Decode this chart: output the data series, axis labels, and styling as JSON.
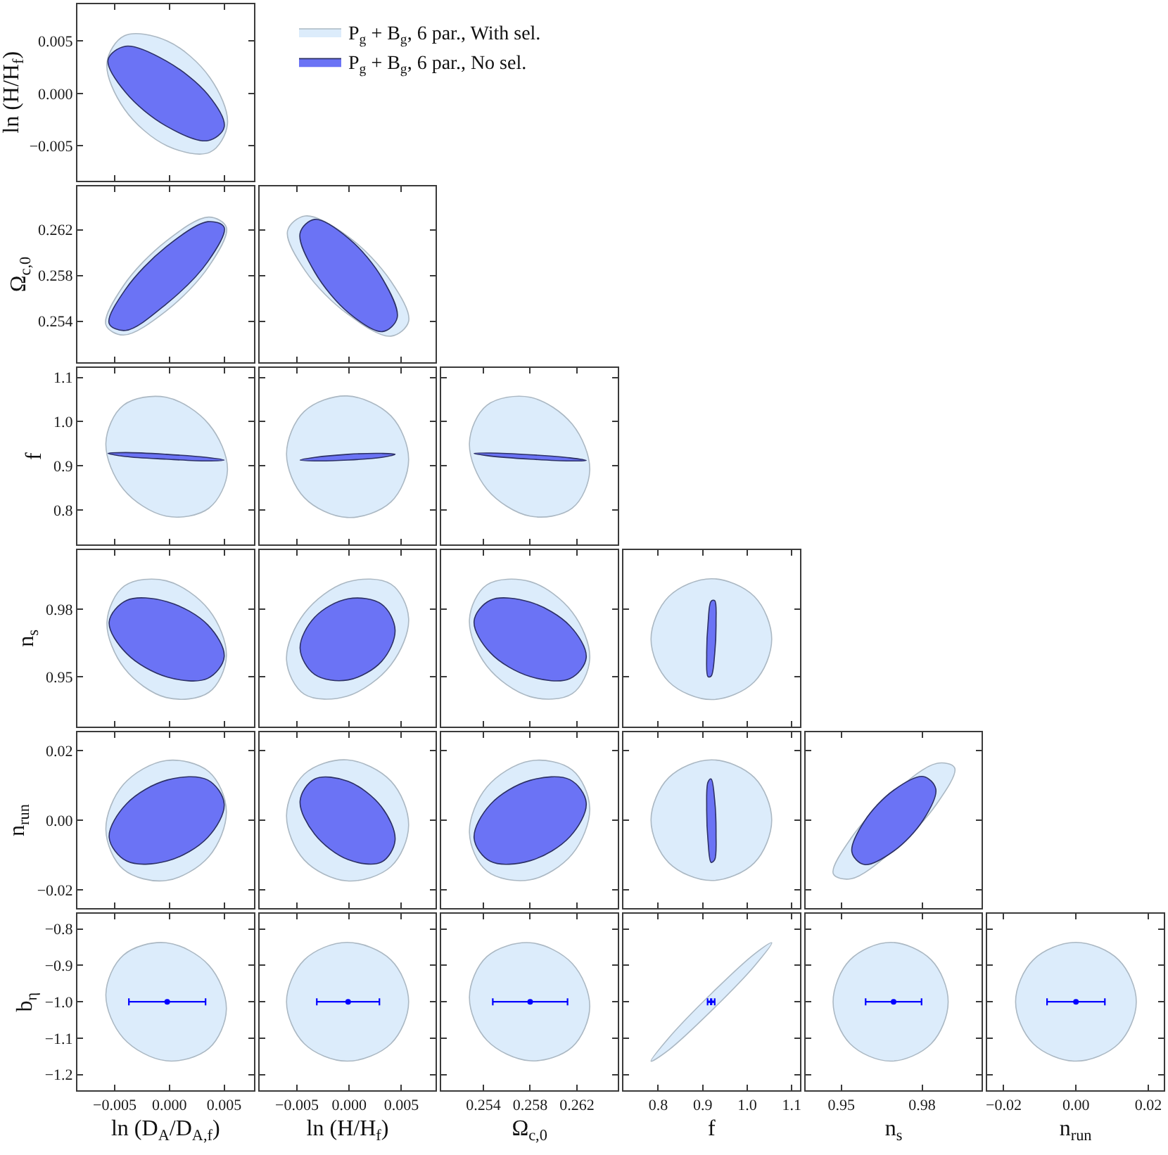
{
  "chart_data": [
    {
      "type": "area",
      "xlim": [
        -0.0084,
        0.0077
      ],
      "ylim": [
        -0.0083,
        0.0085
      ],
      "xticks": [
        -0.005,
        0,
        0.005
      ],
      "yticks": [
        {
          "value": -0.005,
          "label": "−0.005"
        },
        {
          "value": 0,
          "label": "0.000"
        },
        {
          "value": 0.005,
          "label": "0.005"
        }
      ],
      "tick_labels": "y",
      "ylabel": "ln (H/H$_{f}$)",
      "legend": "right",
      "series": [
        {
          "name": "P$_{g}$ + B$_{g}$, 6 par., With sel.",
          "color": "#dcecfb",
          "x": [
            0.0053,
            0.0037,
            -0.0002,
            -0.0041,
            -0.0057,
            -0.0041,
            -0.0002,
            0.0037
          ],
          "values": [
            -0.0029,
            0.0015,
            0.005,
            0.0055,
            0.0029,
            -0.0015,
            -0.005,
            -0.0056
          ]
        },
        {
          "name": "P$_{g}$ + B$_{g}$, 6 par., No sel.",
          "color": "#6b73f5",
          "x": [
            0.005,
            0.0035,
            -0.0003,
            -0.004,
            -0.0056,
            -0.004,
            -0.0003,
            0.0035
          ],
          "values": [
            -0.0032,
            -0.0001,
            0.0031,
            0.0045,
            0.0032,
            0.0001,
            -0.0031,
            -0.0045
          ]
        }
      ]
    },
    {
      "type": "area",
      "xlim": [
        -0.0084,
        0.0077
      ],
      "ylim": [
        0.2504,
        0.2658
      ],
      "xticks": [
        -0.005,
        0,
        0.005
      ],
      "yticks": [
        0.254,
        0.258,
        0.262
      ],
      "tick_labels": "y",
      "ylabel": "Ω$_{c,0}$",
      "series": [
        {
          "color": "#dcecfb",
          "x": [
            0.0052,
            0.0036,
            -0.0003,
            -0.0042,
            -0.0058,
            -0.0042,
            -0.0003,
            0.0036
          ],
          "values": [
            0.2622,
            0.2631,
            0.261,
            0.2571,
            0.2537,
            0.2528,
            0.2549,
            0.2588
          ]
        },
        {
          "color": "#6b73f5",
          "x": [
            0.005,
            0.0035,
            -0.0003,
            -0.004,
            -0.0055,
            -0.004,
            -0.0003,
            0.0035
          ],
          "values": [
            0.2622,
            0.2627,
            0.2605,
            0.2568,
            0.2538,
            0.2532,
            0.2555,
            0.2592
          ]
        }
      ]
    },
    {
      "type": "area",
      "xlim": [
        -0.0086,
        0.0083
      ],
      "ylim": [
        0.2504,
        0.2658
      ],
      "xticks": [
        -0.005,
        0,
        0.005
      ],
      "yticks": [
        0.254,
        0.258,
        0.262
      ],
      "tick_labels": false,
      "series": [
        {
          "color": "#dcecfb",
          "x": [
            0.0057,
            0.004,
            -0.0001,
            -0.0042,
            -0.0059,
            -0.0042,
            -0.0001,
            0.004
          ],
          "values": [
            0.254,
            0.2575,
            0.2614,
            0.2632,
            0.2619,
            0.2584,
            0.2546,
            0.2527
          ]
        },
        {
          "color": "#6b73f5",
          "x": [
            0.0046,
            0.0032,
            0,
            -0.0033,
            -0.0047,
            -0.0033,
            0,
            0.0032
          ],
          "values": [
            0.2543,
            0.2577,
            0.2612,
            0.2629,
            0.2617,
            0.2583,
            0.2547,
            0.2531
          ]
        }
      ]
    },
    {
      "type": "area",
      "xlim": [
        -0.0084,
        0.0077
      ],
      "ylim": [
        0.722,
        1.121
      ],
      "xticks": [
        -0.005,
        0,
        0.005
      ],
      "yticks": [
        0.8,
        0.9,
        {
          "value": 1.0,
          "label": "1.0"
        },
        1.1
      ],
      "tick_labels": "y",
      "ylabel": "f",
      "series": [
        {
          "color": "#dcecfb",
          "x": [
            0.0053,
            0.0036,
            -0.0003,
            -0.0042,
            -0.0058,
            -0.0042,
            -0.0003,
            0.0036
          ],
          "values": [
            0.89,
            0.994,
            1.055,
            1.037,
            0.951,
            0.847,
            0.786,
            0.804
          ]
        },
        {
          "color": "#6b73f5",
          "x": [
            0.005,
            0.0034,
            -0.0003,
            -0.004,
            -0.0056,
            -0.004,
            -0.0003,
            0.0034
          ],
          "values": [
            0.913,
            0.919,
            0.926,
            0.93,
            0.928,
            0.921,
            0.915,
            0.911
          ]
        }
      ]
    },
    {
      "type": "area",
      "xlim": [
        -0.0086,
        0.0083
      ],
      "ylim": [
        0.722,
        1.121
      ],
      "xticks": [
        -0.005,
        0,
        0.005
      ],
      "yticks": [
        0.8,
        0.9,
        1.0,
        1.1
      ],
      "tick_labels": false,
      "series": [
        {
          "color": "#dcecfb",
          "x": [
            0.0057,
            0.004,
            -0.0002,
            -0.0043,
            -0.006,
            -0.0043,
            -0.0002,
            0.004
          ],
          "values": [
            0.914,
            1.013,
            1.058,
            1.023,
            0.927,
            0.828,
            0.783,
            0.818
          ]
        },
        {
          "color": "#6b73f5",
          "x": [
            0.0044,
            0.0031,
            -0.0001,
            -0.0033,
            -0.0047,
            -0.0033,
            -0.0001,
            0.0031
          ],
          "values": [
            0.926,
            0.928,
            0.926,
            0.919,
            0.913,
            0.911,
            0.913,
            0.919
          ]
        }
      ]
    },
    {
      "type": "area",
      "xlim": [
        0.2504,
        0.2655
      ],
      "ylim": [
        0.722,
        1.121
      ],
      "xticks": [
        0.254,
        0.258,
        0.262
      ],
      "yticks": [
        0.8,
        0.9,
        1.0,
        1.1
      ],
      "tick_labels": false,
      "series": [
        {
          "color": "#dcecfb",
          "x": [
            0.2631,
            0.2616,
            0.258,
            0.2543,
            0.2528,
            0.2543,
            0.258,
            0.2616
          ],
          "values": [
            0.89,
            0.994,
            1.055,
            1.037,
            0.951,
            0.847,
            0.786,
            0.804
          ]
        },
        {
          "color": "#6b73f5",
          "x": [
            0.2628,
            0.2614,
            0.258,
            0.2546,
            0.2532,
            0.2546,
            0.258,
            0.2614
          ],
          "values": [
            0.912,
            0.918,
            0.925,
            0.929,
            0.928,
            0.922,
            0.915,
            0.911
          ]
        }
      ]
    },
    {
      "type": "area",
      "xlim": [
        -0.0084,
        0.0077
      ],
      "ylim": [
        0.928,
        1.0062
      ],
      "xticks": [
        -0.005,
        0,
        0.005
      ],
      "yticks": [
        0.95,
        0.98
      ],
      "tick_labels": "y",
      "ylabel": "n$_{s}$",
      "series": [
        {
          "color": "#dcecfb",
          "x": [
            0.0052,
            0.0036,
            -0.0003,
            -0.0041,
            -0.0057,
            -0.0041,
            -0.0003,
            0.0036
          ],
          "values": [
            0.9591,
            0.9797,
            0.9926,
            0.9903,
            0.9742,
            0.9537,
            0.9408,
            0.9431
          ]
        },
        {
          "color": "#6b73f5",
          "x": [
            0.005,
            0.0035,
            -0.0002,
            -0.0039,
            -0.0055,
            -0.0039,
            -0.0002,
            0.0035
          ],
          "values": [
            0.9589,
            0.973,
            0.9833,
            0.9839,
            0.9743,
            0.9603,
            0.9499,
            0.9493
          ]
        }
      ]
    },
    {
      "type": "area",
      "xlim": [
        -0.0086,
        0.0083
      ],
      "ylim": [
        0.928,
        1.0062
      ],
      "xticks": [
        -0.005,
        0,
        0.005
      ],
      "yticks": [
        0.95,
        0.98
      ],
      "tick_labels": false,
      "series": [
        {
          "color": "#dcecfb",
          "x": [
            0.0057,
            0.004,
            -0.0002,
            -0.0043,
            -0.006,
            -0.0043,
            -0.0002,
            0.004
          ],
          "values": [
            0.9759,
            0.9911,
            0.992,
            0.9781,
            0.9575,
            0.9423,
            0.9414,
            0.9553
          ]
        },
        {
          "color": "#6b73f5",
          "x": [
            0.0044,
            0.0031,
            -0.0001,
            -0.0033,
            -0.0047,
            -0.0033,
            -0.0001,
            0.0031
          ],
          "values": [
            0.9707,
            0.9822,
            0.9846,
            0.9764,
            0.9626,
            0.951,
            0.9486,
            0.9568
          ]
        }
      ]
    },
    {
      "type": "area",
      "xlim": [
        0.2504,
        0.2655
      ],
      "ylim": [
        0.928,
        1.0062
      ],
      "xticks": [
        0.254,
        0.258,
        0.262
      ],
      "yticks": [
        0.95,
        0.98
      ],
      "tick_labels": false,
      "series": [
        {
          "color": "#dcecfb",
          "x": [
            0.2631,
            0.2616,
            0.258,
            0.2543,
            0.2528,
            0.2543,
            0.258,
            0.2616
          ],
          "values": [
            0.9581,
            0.9787,
            0.9922,
            0.9908,
            0.9753,
            0.9547,
            0.9412,
            0.9425
          ]
        },
        {
          "color": "#6b73f5",
          "x": [
            0.2628,
            0.2614,
            0.258,
            0.2546,
            0.2532,
            0.2546,
            0.258,
            0.2614
          ],
          "values": [
            0.9585,
            0.9726,
            0.9831,
            0.984,
            0.9747,
            0.9606,
            0.9501,
            0.9492
          ]
        }
      ]
    },
    {
      "type": "area",
      "xlim": [
        0.722,
        1.118
      ],
      "ylim": [
        0.928,
        1.0062
      ],
      "xticks": [
        0.8,
        0.9,
        1.0,
        1.1
      ],
      "yticks": [
        0.95,
        0.98
      ],
      "tick_labels": false,
      "series": [
        {
          "color": "#dcecfb",
          "x": [
            1.055,
            1.016,
            0.92,
            0.824,
            0.784,
            0.824,
            0.92,
            1.016
          ],
          "values": [
            0.9667,
            0.9856,
            0.9935,
            0.9856,
            0.9667,
            0.9478,
            0.9399,
            0.9478
          ]
        },
        {
          "color": "#6b73f5",
          "x": [
            0.93,
            0.927,
            0.919,
            0.912,
            0.909,
            0.912,
            0.919,
            0.927
          ],
          "values": [
            0.9741,
            0.9838,
            0.9835,
            0.9735,
            0.9597,
            0.9501,
            0.9503,
            0.9603
          ]
        }
      ]
    },
    {
      "type": "area",
      "xlim": [
        -0.0084,
        0.0077
      ],
      "ylim": [
        -0.0253,
        0.0254
      ],
      "xticks": [
        -0.005,
        0,
        0.005
      ],
      "yticks": [
        {
          "value": -0.02,
          "label": "−0.02"
        },
        {
          "value": 0,
          "label": "0.00"
        },
        0.02
      ],
      "tick_labels": "y",
      "ylabel": "n$_{run}$",
      "series": [
        {
          "color": "#dcecfb",
          "x": [
            0.0052,
            0.0036,
            -0.0003,
            -0.0042,
            -0.0058,
            -0.0042,
            -0.0003,
            0.0036
          ],
          "values": [
            0.0026,
            0.014,
            0.0172,
            0.0103,
            -0.0027,
            -0.0141,
            -0.0173,
            -0.0104
          ]
        },
        {
          "color": "#6b73f5",
          "x": [
            0.005,
            0.0035,
            -0.0002,
            -0.0039,
            -0.0055,
            -0.0039,
            -0.0002,
            0.0035
          ],
          "values": [
            0.0047,
            0.0116,
            0.0116,
            0.0048,
            -0.0049,
            -0.0117,
            -0.0117,
            -0.0049
          ]
        }
      ]
    },
    {
      "type": "area",
      "xlim": [
        -0.0086,
        0.0083
      ],
      "ylim": [
        -0.0253,
        0.0254
      ],
      "xticks": [
        -0.005,
        0,
        0.005
      ],
      "yticks": [
        -0.02,
        0,
        0.02
      ],
      "tick_labels": false,
      "series": [
        {
          "color": "#dcecfb",
          "x": [
            0.0057,
            0.004,
            -0.0002,
            -0.0043,
            -0.006,
            -0.0043,
            -0.0002,
            0.004
          ],
          "values": [
            -0.0014,
            0.0113,
            0.0174,
            0.0133,
            0.0014,
            -0.0114,
            -0.0174,
            -0.0133
          ]
        },
        {
          "color": "#6b73f5",
          "x": [
            0.0044,
            0.0031,
            -0.0001,
            -0.0033,
            -0.0047,
            -0.0033,
            -0.0001,
            0.0031
          ],
          "values": [
            -0.0057,
            0.0039,
            0.0112,
            0.0119,
            0.0056,
            -0.004,
            -0.0113,
            -0.012
          ]
        }
      ]
    },
    {
      "type": "area",
      "xlim": [
        0.2504,
        0.2655
      ],
      "ylim": [
        -0.0253,
        0.0254
      ],
      "xticks": [
        0.254,
        0.258,
        0.262
      ],
      "yticks": [
        -0.02,
        0,
        0.02
      ],
      "tick_labels": false,
      "series": [
        {
          "color": "#dcecfb",
          "x": [
            0.2631,
            0.2616,
            0.258,
            0.2543,
            0.2528,
            0.2543,
            0.258,
            0.2616
          ],
          "values": [
            0.0035,
            0.0145,
            0.0171,
            0.0096,
            -0.0035,
            -0.0146,
            -0.0171,
            -0.0097
          ]
        },
        {
          "color": "#6b73f5",
          "x": [
            0.2628,
            0.2614,
            0.258,
            0.2546,
            0.2532,
            0.2546,
            0.258,
            0.2614
          ],
          "values": [
            0.005,
            0.0117,
            0.0115,
            0.0046,
            -0.0051,
            -0.0118,
            -0.0116,
            -0.0047
          ]
        }
      ]
    },
    {
      "type": "area",
      "xlim": [
        0.722,
        1.118
      ],
      "ylim": [
        -0.0253,
        0.0254
      ],
      "xticks": [
        0.8,
        0.9,
        1.0,
        1.1
      ],
      "yticks": [
        -0.02,
        0,
        0.02
      ],
      "tick_labels": false,
      "series": [
        {
          "color": "#dcecfb",
          "x": [
            1.055,
            1.016,
            0.92,
            0.824,
            0.784,
            0.824,
            0.92,
            1.016
          ],
          "values": [
            0.0001,
            0.0123,
            0.0174,
            0.0123,
            0.0001,
            -0.0122,
            -0.0173,
            -0.0122
          ]
        },
        {
          "color": "#6b73f5",
          "x": [
            0.93,
            0.927,
            0.919,
            0.912,
            0.909,
            0.912,
            0.919,
            0.927
          ],
          "values": [
            -0.0039,
            0.0057,
            0.0119,
            0.011,
            0.0037,
            -0.0059,
            -0.0121,
            -0.0113
          ]
        }
      ]
    },
    {
      "type": "area",
      "xlim": [
        0.9366,
        1.0022
      ],
      "ylim": [
        -0.0253,
        0.0254
      ],
      "xticks": [
        0.95,
        0.98
      ],
      "yticks": [
        -0.02,
        0,
        0.02
      ],
      "tick_labels": false,
      "series": [
        {
          "color": "#dcecfb",
          "x": [
            0.9921,
            0.9855,
            0.9695,
            0.9536,
            0.947,
            0.9536,
            0.9695,
            0.9855
          ],
          "values": [
            0.0151,
            0.0164,
            0.008,
            -0.0051,
            -0.0154,
            -0.0168,
            -0.0084,
            0.0048
          ]
        },
        {
          "color": "#6b73f5",
          "x": [
            0.9851,
            0.9805,
            0.9695,
            0.9585,
            0.9539,
            0.9585,
            0.9695,
            0.9805
          ],
          "values": [
            0.009,
            0.0126,
            0.0087,
            -0.0003,
            -0.0091,
            -0.0127,
            -0.0088,
            0.0002
          ]
        }
      ]
    },
    {
      "type": "area",
      "xlim": [
        -0.0084,
        0.0077
      ],
      "ylim": [
        -1.243,
        -0.759
      ],
      "xticks": [
        {
          "value": -0.005,
          "label": "−0.005"
        },
        {
          "value": 0,
          "label": "0.000"
        },
        {
          "value": 0.005,
          "label": "0.005"
        }
      ],
      "yticks": [
        {
          "value": -1.2,
          "label": "−1.2"
        },
        {
          "value": -1.1,
          "label": "−1.1"
        },
        {
          "value": -1.0,
          "label": "−1.0"
        },
        {
          "value": -0.9,
          "label": "−0.9"
        },
        {
          "value": -0.8,
          "label": "−0.8"
        }
      ],
      "xlabel": "ln (D$_{A}$/D$_{A,f}$)",
      "ylabel": "b$_{η}$",
      "series": [
        {
          "color": "#dcecfb",
          "x": [
            0.0052,
            0.0036,
            -0.0003,
            -0.0042,
            -0.0058,
            -0.0042,
            -0.0003,
            0.0036
          ],
          "values": [
            -1.02,
            -0.9,
            -0.838,
            -0.872,
            -0.98,
            -1.1,
            -1.162,
            -1.128
          ]
        },
        {
          "type": "scatter",
          "marker": "circle",
          "color": "#0000ff",
          "x": [
            -0.0002
          ],
          "values": [
            -1.0
          ],
          "xerrors": [
            0.0035
          ]
        }
      ]
    },
    {
      "type": "area",
      "xlim": [
        -0.0086,
        0.0083
      ],
      "ylim": [
        -1.243,
        -0.759
      ],
      "xticks": [
        {
          "value": -0.005,
          "label": "−0.005"
        },
        {
          "value": 0,
          "label": "0.000"
        },
        {
          "value": 0.005,
          "label": "0.005"
        }
      ],
      "yticks": [
        -1.2,
        -1.1,
        -1.0,
        -0.9,
        -0.8
      ],
      "tick_labels": "x",
      "xlabel": "ln (H/H$_{f}$)",
      "series": [
        {
          "color": "#dcecfb",
          "x": [
            0.0057,
            0.004,
            -0.0002,
            -0.0043,
            -0.006,
            -0.0043,
            -0.0002,
            0.004
          ],
          "values": [
            -1.0,
            -0.885,
            -0.837,
            -0.885,
            -1.0,
            -1.115,
            -1.163,
            -1.115
          ]
        },
        {
          "type": "scatter",
          "marker": "circle",
          "color": "#0000ff",
          "x": [
            -0.0001
          ],
          "values": [
            -1.0
          ],
          "xerrors": [
            0.003
          ]
        }
      ]
    },
    {
      "type": "area",
      "xlim": [
        0.2504,
        0.2655
      ],
      "ylim": [
        -1.243,
        -0.759
      ],
      "xticks": [
        0.254,
        0.258,
        0.262
      ],
      "yticks": [
        -1.2,
        -1.1,
        -1.0,
        -0.9,
        -0.8
      ],
      "tick_labels": "x",
      "xlabel": "Ω$_{c,0}$",
      "series": [
        {
          "color": "#dcecfb",
          "x": [
            0.2631,
            0.2616,
            0.258,
            0.2543,
            0.2528,
            0.2543,
            0.258,
            0.2616
          ],
          "values": [
            -1.013,
            -0.895,
            -0.838,
            -0.876,
            -0.987,
            -1.106,
            -1.162,
            -1.124
          ]
        },
        {
          "type": "scatter",
          "marker": "circle",
          "color": "#0000ff",
          "x": [
            0.258
          ],
          "values": [
            -1.0
          ],
          "xerrors": [
            0.0032
          ]
        }
      ]
    },
    {
      "type": "area",
      "xlim": [
        0.722,
        1.118
      ],
      "ylim": [
        -1.243,
        -0.759
      ],
      "xticks": [
        0.8,
        0.9,
        {
          "value": 1.0,
          "label": "1.0"
        },
        1.1
      ],
      "yticks": [
        -1.2,
        -1.1,
        -1.0,
        -0.9,
        -0.8
      ],
      "tick_labels": "x",
      "xlabel": "f",
      "series": [
        {
          "color": "#dcecfb",
          "x": [
            1.055,
            1.016,
            0.92,
            0.824,
            0.784,
            0.824,
            0.92,
            1.016
          ],
          "values": [
            -0.838,
            -0.869,
            -0.977,
            -1.099,
            -1.163,
            -1.132,
            -1.024,
            -0.902
          ]
        },
        {
          "type": "scatter",
          "marker": "cross",
          "color": "#0000ff",
          "x": [
            0.919
          ],
          "values": [
            -1.0
          ],
          "xerrors": [
            0.008
          ]
        }
      ]
    },
    {
      "type": "area",
      "xlim": [
        0.9366,
        1.0022
      ],
      "ylim": [
        -1.243,
        -0.759
      ],
      "xticks": [
        0.95,
        0.98
      ],
      "yticks": [
        -1.2,
        -1.1,
        -1.0,
        -0.9,
        -0.8
      ],
      "tick_labels": "x",
      "xlabel": "n$_{s}$",
      "series": [
        {
          "color": "#dcecfb",
          "x": [
            0.9897,
            0.9834,
            0.9683,
            0.9532,
            0.9469,
            0.9532,
            0.9683,
            0.9834
          ],
          "values": [
            -1.0,
            -0.885,
            -0.837,
            -0.885,
            -1.0,
            -1.115,
            -1.163,
            -1.115
          ]
        },
        {
          "type": "scatter",
          "marker": "circle",
          "color": "#0000ff",
          "x": [
            0.9694
          ],
          "values": [
            -1.0
          ],
          "xerrors": [
            0.0104
          ]
        }
      ]
    },
    {
      "type": "area",
      "xlim": [
        -0.0245,
        0.0243
      ],
      "ylim": [
        -1.243,
        -0.759
      ],
      "xticks": [
        {
          "value": -0.02,
          "label": "−0.02"
        },
        {
          "value": 0,
          "label": "0.00"
        },
        0.02
      ],
      "yticks": [
        -1.2,
        -1.1,
        -1.0,
        -0.9,
        -0.8
      ],
      "tick_labels": "x",
      "xlabel": "n$_{run}$",
      "series": [
        {
          "color": "#dcecfb",
          "x": [
            0.0167,
            0.0118,
            0,
            -0.0118,
            -0.0167,
            -0.0118,
            0,
            0.0118
          ],
          "values": [
            -1.0,
            -0.885,
            -0.837,
            -0.885,
            -1.0,
            -1.115,
            -1.163,
            -1.115
          ]
        },
        {
          "type": "scatter",
          "marker": "circle",
          "color": "#0000ff",
          "x": [
            0
          ],
          "values": [
            -1.0
          ],
          "xerrors": [
            0.008
          ]
        }
      ]
    }
  ]
}
